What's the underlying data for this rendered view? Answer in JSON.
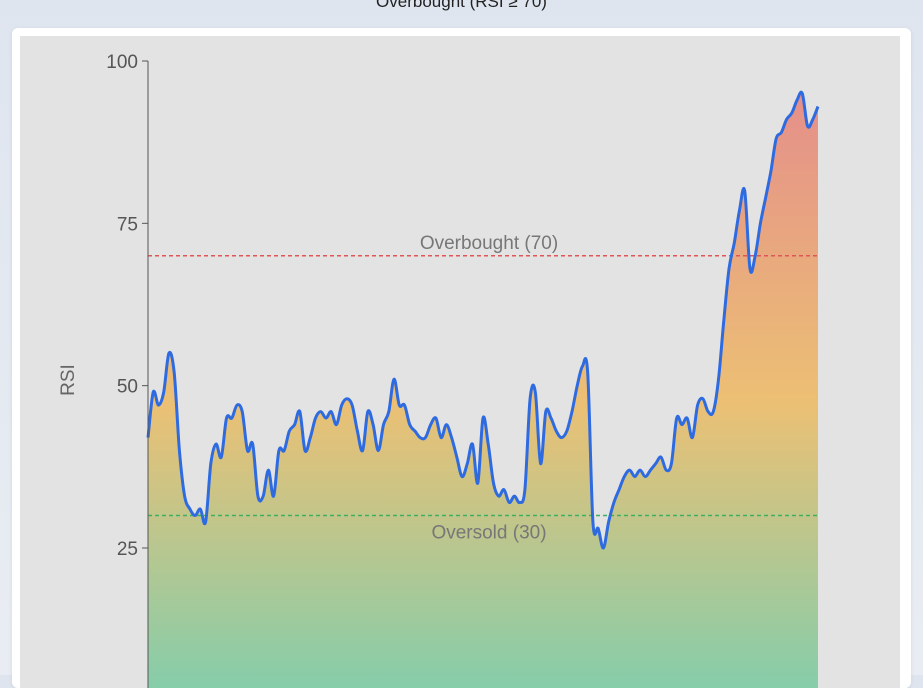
{
  "header": {
    "partial_title": "Overbought (RSI ≥ 70)"
  },
  "colors": {
    "line": "#2f6be0",
    "overbought_line": "#e05555",
    "oversold_line": "#3cb060",
    "plot_bg": "#e3e3e3",
    "fill_top": "#e58f8a",
    "fill_mid": "#ecc074",
    "fill_bottom": "#86cdaa"
  },
  "chart_data": {
    "type": "area",
    "ylabel": "RSI",
    "xlabel": "",
    "ylim": [
      5,
      100
    ],
    "yticks": [
      25,
      50,
      75,
      100
    ],
    "y": [
      42,
      49,
      47,
      49,
      55,
      52,
      40,
      33,
      31,
      30,
      31,
      29,
      38,
      41,
      39,
      45,
      45,
      47,
      46,
      40,
      41,
      33,
      33,
      37,
      33,
      40,
      40,
      43,
      44,
      46,
      40,
      42,
      45,
      46,
      45,
      46,
      44,
      47,
      48,
      47,
      43,
      40,
      46,
      44,
      40,
      44,
      46,
      51,
      47,
      47,
      44,
      43,
      42,
      42,
      44,
      45,
      42,
      44,
      42,
      39,
      36,
      38,
      41,
      35,
      45,
      41,
      35,
      33,
      34,
      32,
      33,
      32,
      34,
      48,
      49,
      38,
      46,
      45,
      43,
      42,
      43,
      46,
      50,
      53,
      52,
      29,
      28,
      25,
      29,
      32,
      34,
      36,
      37,
      36,
      37,
      36,
      37,
      38,
      39,
      37,
      38,
      45,
      44,
      45,
      42,
      47,
      48,
      46,
      46,
      51,
      60,
      68,
      72,
      77,
      80,
      68,
      70,
      75,
      79,
      83,
      88,
      89,
      91,
      92,
      94,
      95,
      90,
      91,
      93
    ],
    "reference_lines": [
      {
        "label": "Overbought (70)",
        "value": 70
      },
      {
        "label": "Oversold (30)",
        "value": 30
      }
    ]
  }
}
